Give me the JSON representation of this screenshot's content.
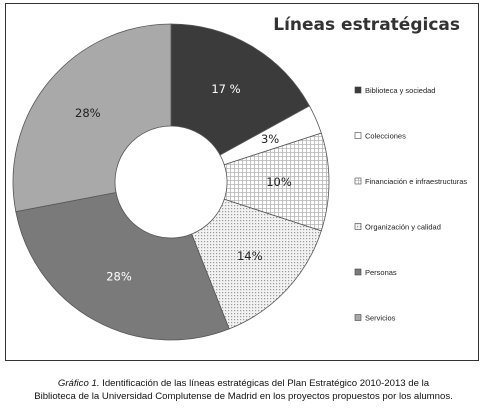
{
  "chart_data": {
    "type": "pie",
    "donut": true,
    "title": "Líneas estratégicas",
    "unit": "%",
    "categories": [
      "Biblioteca y sociedad",
      "Colecciones",
      "Financiación e infraestructuras",
      "Organización y calidad",
      "Personas",
      "Servicios"
    ],
    "values": [
      17,
      3,
      10,
      14,
      28,
      28
    ],
    "labels": [
      "17 %",
      "3%",
      "10%",
      "14%",
      "28%",
      "28%"
    ],
    "legend": {
      "position": "right"
    },
    "colors": [
      "#3b3b3b",
      "#ffffff",
      "#ffffff",
      "#e8e8e8",
      "#7a7a7a",
      "#a9a9a9"
    ],
    "patterns": [
      "solid",
      "solid",
      "grid",
      "dots",
      "solid",
      "solid"
    ]
  },
  "caption": {
    "label": "Gráfico 1.",
    "line1": "Identificación de las líneas estratégicas del Plan Estratégico 2010-2013 de la",
    "line2": "Biblioteca de la Universidad Complutense de Madrid en los proyectos propuestos por los alumnos."
  }
}
